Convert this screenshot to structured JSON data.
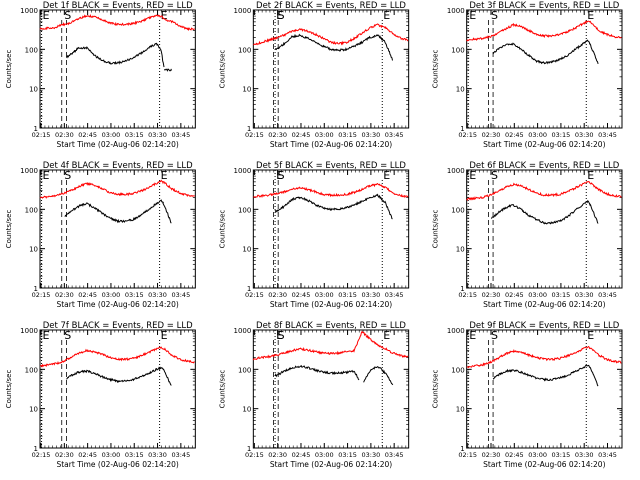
{
  "layout_cols": 3,
  "colors": {
    "events": "#000000",
    "lld": "#ff0000",
    "axis": "#000000",
    "background": "#ffffff"
  },
  "common": {
    "ylabel": "Counts/sec",
    "xlabel": "Start Time (02-Aug-06 02:14:20)",
    "xticks": [
      "02:15",
      "02:30",
      "02:45",
      "03:00",
      "03:15",
      "03:30",
      "03:45"
    ],
    "xtick_minutes": [
      0.67,
      15.67,
      30.67,
      45.67,
      60.67,
      75.67,
      90.67
    ],
    "xlim_minutes": [
      0,
      100
    ],
    "yscale": "log",
    "ylim": [
      1,
      1000
    ],
    "yticks": [
      "1",
      "10",
      "100",
      "1000"
    ],
    "marker_labels": [
      "E",
      "S",
      "E"
    ]
  },
  "chart_data": [
    {
      "type": "line",
      "title": "Det 1f BLACK = Events, RED = LLD",
      "ylim": [
        1,
        1000
      ],
      "yscale": "log",
      "x_minutes": [
        0,
        5,
        10,
        15,
        16,
        20,
        25,
        30,
        35,
        40,
        45,
        50,
        55,
        60,
        65,
        70,
        75,
        78,
        80,
        85,
        90,
        95,
        100
      ],
      "series": [
        {
          "name": "Events",
          "segments": [
            [
              17,
              80
            ],
            [
              19,
              25
            ],
            [
              80,
              85
            ]
          ],
          "values": [
            null,
            null,
            null,
            null,
            60,
            75,
            110,
            110,
            70,
            52,
            45,
            45,
            50,
            62,
            80,
            110,
            140,
            95,
            30,
            null,
            null,
            null,
            null
          ]
        },
        {
          "name": "LLD",
          "segments": [
            [
              0,
              100
            ]
          ],
          "values": [
            330,
            350,
            360,
            430,
            430,
            480,
            600,
            720,
            680,
            560,
            470,
            430,
            430,
            450,
            520,
            620,
            720,
            700,
            580,
            500,
            400,
            330,
            330
          ]
        }
      ],
      "markers_minutes": [
        1,
        15,
        77
      ],
      "dashed_band_minutes": [
        14,
        17
      ]
    },
    {
      "type": "line",
      "title": "Det 2f BLACK = Events, RED = LLD",
      "ylim": [
        1,
        1000
      ],
      "yscale": "log",
      "x_minutes": [
        0,
        5,
        10,
        15,
        20,
        25,
        30,
        35,
        40,
        45,
        50,
        55,
        60,
        65,
        70,
        75,
        80,
        85,
        90,
        95,
        100
      ],
      "series": [
        {
          "name": "Events",
          "segments": [
            [
              14,
              84
            ],
            [
              82,
              90
            ]
          ],
          "values": [
            null,
            null,
            null,
            100,
            140,
            210,
            230,
            190,
            150,
            120,
            100,
            95,
            100,
            120,
            150,
            200,
            230,
            150,
            50,
            null,
            null
          ]
        },
        {
          "name": "LLD",
          "segments": [
            [
              0,
              100
            ]
          ],
          "values": [
            130,
            150,
            170,
            200,
            230,
            290,
            320,
            290,
            240,
            190,
            150,
            140,
            150,
            190,
            260,
            350,
            420,
            360,
            250,
            190,
            170
          ]
        }
      ],
      "markers_minutes": [
        14,
        15,
        83
      ],
      "dashed_band_minutes": [
        13,
        16
      ]
    },
    {
      "type": "line",
      "title": "Det 3f BLACK = Events, RED = LLD",
      "ylim": [
        1,
        1000
      ],
      "yscale": "log",
      "x_minutes": [
        0,
        5,
        10,
        15,
        20,
        25,
        30,
        35,
        40,
        45,
        50,
        55,
        60,
        65,
        70,
        75,
        78,
        80,
        85,
        90,
        95,
        100
      ],
      "series": [
        {
          "name": "Events",
          "segments": [
            [
              17,
              80
            ],
            [
              79,
              85
            ]
          ],
          "values": [
            null,
            null,
            null,
            70,
            100,
            130,
            140,
            100,
            70,
            50,
            45,
            48,
            55,
            70,
            100,
            140,
            170,
            120,
            40,
            null,
            null,
            null
          ]
        },
        {
          "name": "LLD",
          "segments": [
            [
              0,
              100
            ]
          ],
          "values": [
            170,
            180,
            190,
            210,
            250,
            330,
            420,
            380,
            300,
            240,
            220,
            220,
            240,
            280,
            350,
            450,
            520,
            480,
            300,
            240,
            210,
            200
          ]
        }
      ],
      "markers_minutes": [
        1,
        15,
        77
      ],
      "dashed_band_minutes": [
        14,
        17
      ]
    },
    {
      "type": "line",
      "title": "Det 4f BLACK = Events, RED = LLD",
      "ylim": [
        1,
        1000
      ],
      "yscale": "log",
      "x_minutes": [
        0,
        5,
        10,
        15,
        20,
        25,
        30,
        35,
        40,
        45,
        50,
        55,
        60,
        65,
        70,
        75,
        78,
        80,
        85,
        90,
        95,
        100
      ],
      "series": [
        {
          "name": "Events",
          "segments": [
            [
              16,
              80
            ],
            [
              79,
              85
            ]
          ],
          "values": [
            null,
            null,
            null,
            60,
            90,
            120,
            140,
            110,
            80,
            60,
            50,
            50,
            55,
            70,
            100,
            140,
            170,
            130,
            40,
            null,
            null,
            null
          ]
        },
        {
          "name": "LLD",
          "segments": [
            [
              0,
              100
            ]
          ],
          "values": [
            200,
            210,
            220,
            250,
            300,
            380,
            450,
            420,
            330,
            270,
            240,
            240,
            250,
            290,
            360,
            460,
            520,
            480,
            330,
            260,
            230,
            220
          ]
        }
      ],
      "markers_minutes": [
        1,
        15,
        77
      ],
      "dashed_band_minutes": [
        14,
        17
      ]
    },
    {
      "type": "line",
      "title": "Det 5f BLACK = Events, RED = LLD",
      "ylim": [
        1,
        1000
      ],
      "yscale": "log",
      "x_minutes": [
        0,
        5,
        10,
        15,
        20,
        25,
        30,
        35,
        40,
        45,
        50,
        55,
        60,
        65,
        70,
        75,
        80,
        85,
        90,
        95,
        100
      ],
      "series": [
        {
          "name": "Events",
          "segments": [
            [
              14,
              84
            ],
            [
              82,
              90
            ]
          ],
          "values": [
            null,
            null,
            null,
            90,
            120,
            180,
            200,
            170,
            130,
            110,
            100,
            100,
            110,
            130,
            160,
            200,
            230,
            150,
            50,
            null,
            null
          ]
        },
        {
          "name": "LLD",
          "segments": [
            [
              0,
              100
            ]
          ],
          "values": [
            210,
            220,
            230,
            250,
            280,
            330,
            350,
            320,
            280,
            240,
            230,
            230,
            240,
            270,
            320,
            400,
            430,
            360,
            260,
            220,
            210
          ]
        }
      ],
      "markers_minutes": [
        14,
        15,
        83
      ],
      "dashed_band_minutes": [
        13,
        16
      ]
    },
    {
      "type": "line",
      "title": "Det 6f BLACK = Events, RED = LLD",
      "ylim": [
        1,
        1000
      ],
      "yscale": "log",
      "x_minutes": [
        0,
        5,
        10,
        15,
        20,
        25,
        30,
        35,
        40,
        45,
        50,
        55,
        60,
        65,
        70,
        75,
        78,
        80,
        85,
        90,
        95,
        100
      ],
      "series": [
        {
          "name": "Events",
          "segments": [
            [
              16,
              80
            ],
            [
              79,
              85
            ]
          ],
          "values": [
            null,
            null,
            null,
            55,
            80,
            110,
            130,
            100,
            70,
            55,
            45,
            45,
            50,
            65,
            95,
            130,
            160,
            120,
            40,
            null,
            null,
            null
          ]
        },
        {
          "name": "LLD",
          "segments": [
            [
              0,
              100
            ]
          ],
          "values": [
            180,
            190,
            200,
            230,
            280,
            360,
            430,
            400,
            320,
            260,
            230,
            230,
            240,
            280,
            350,
            440,
            500,
            460,
            320,
            250,
            220,
            210
          ]
        }
      ],
      "markers_minutes": [
        1,
        15,
        77
      ],
      "dashed_band_minutes": [
        14,
        17
      ]
    },
    {
      "type": "line",
      "title": "Det 7f BLACK = Events, RED = LLD",
      "ylim": [
        1,
        1000
      ],
      "yscale": "log",
      "x_minutes": [
        0,
        5,
        10,
        15,
        20,
        25,
        30,
        35,
        40,
        45,
        50,
        55,
        60,
        65,
        70,
        75,
        78,
        80,
        85,
        90,
        95,
        100
      ],
      "series": [
        {
          "name": "Events",
          "segments": [
            [
              17,
              80
            ],
            [
              79,
              85
            ]
          ],
          "values": [
            null,
            null,
            null,
            50,
            70,
            85,
            90,
            80,
            65,
            55,
            50,
            50,
            55,
            65,
            80,
            100,
            110,
            90,
            35,
            null,
            null,
            null
          ]
        },
        {
          "name": "LLD",
          "segments": [
            [
              0,
              100
            ]
          ],
          "values": [
            120,
            130,
            140,
            160,
            200,
            260,
            300,
            280,
            240,
            200,
            180,
            180,
            190,
            220,
            270,
            330,
            360,
            330,
            230,
            180,
            160,
            150
          ]
        }
      ],
      "markers_minutes": [
        1,
        15,
        77
      ],
      "dashed_band_minutes": [
        14,
        17
      ]
    },
    {
      "type": "line",
      "title": "Det 8f BLACK = Events, RED = LLD",
      "ylim": [
        1,
        1000
      ],
      "yscale": "log",
      "x_minutes": [
        0,
        5,
        10,
        15,
        20,
        25,
        30,
        35,
        40,
        45,
        50,
        55,
        60,
        65,
        70,
        75,
        80,
        85,
        90,
        95,
        100
      ],
      "series": [
        {
          "name": "Events",
          "segments": [
            [
              14,
              68
            ],
            [
              71,
              90
            ]
          ],
          "values": [
            null,
            null,
            null,
            70,
            90,
            110,
            120,
            110,
            95,
            85,
            80,
            80,
            85,
            90,
            40,
            90,
            120,
            80,
            40,
            null,
            null
          ]
        },
        {
          "name": "LLD",
          "segments": [
            [
              0,
              100
            ]
          ],
          "values": [
            180,
            200,
            210,
            230,
            260,
            300,
            330,
            310,
            280,
            260,
            250,
            260,
            280,
            300,
            900,
            600,
            420,
            330,
            260,
            220,
            200
          ]
        }
      ],
      "markers_minutes": [
        14,
        15,
        83
      ],
      "dashed_band_minutes": [
        13,
        16
      ]
    },
    {
      "type": "line",
      "title": "Det 9f BLACK = Events, RED = LLD",
      "ylim": [
        1,
        1000
      ],
      "yscale": "log",
      "x_minutes": [
        0,
        5,
        10,
        15,
        20,
        25,
        30,
        35,
        40,
        45,
        50,
        55,
        60,
        65,
        70,
        75,
        78,
        80,
        85,
        90,
        95,
        100
      ],
      "series": [
        {
          "name": "Events",
          "segments": [
            [
              17,
              80
            ],
            [
              79,
              85
            ]
          ],
          "values": [
            null,
            null,
            null,
            50,
            70,
            90,
            95,
            85,
            70,
            60,
            55,
            55,
            60,
            70,
            90,
            110,
            130,
            100,
            35,
            null,
            null,
            null
          ]
        },
        {
          "name": "LLD",
          "segments": [
            [
              0,
              100
            ]
          ],
          "values": [
            110,
            120,
            130,
            150,
            190,
            250,
            290,
            270,
            230,
            200,
            180,
            180,
            190,
            220,
            270,
            330,
            370,
            340,
            230,
            180,
            160,
            150
          ]
        }
      ],
      "markers_minutes": [
        1,
        15,
        77
      ],
      "dashed_band_minutes": [
        14,
        17
      ]
    }
  ]
}
